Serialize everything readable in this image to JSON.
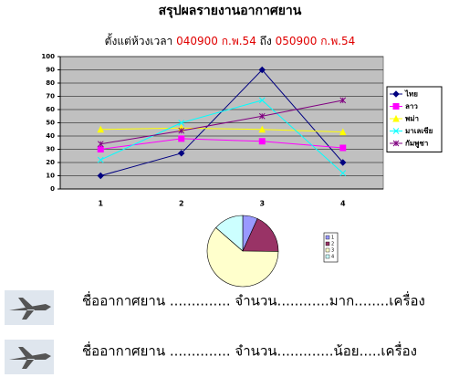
{
  "header": {
    "title": "สรุปผลรายงานอากาศยาน",
    "subtitle": [
      "ตั้งแต่ห้วงเวลา",
      "040900 ก.พ.54",
      "ถึง",
      "050900 ก.พ.54"
    ]
  },
  "chart_data": [
    {
      "type": "line",
      "categories": [
        "1",
        "2",
        "3",
        "4"
      ],
      "ylim": [
        0,
        100
      ],
      "yticks": [
        0,
        10,
        20,
        30,
        40,
        50,
        60,
        70,
        80,
        90,
        100
      ],
      "grid": true,
      "legend": "right",
      "series": [
        {
          "name": "ไทย",
          "color": "#000080",
          "marker": "diamond",
          "values": [
            10,
            27,
            90,
            20
          ]
        },
        {
          "name": "ลาว",
          "color": "#ff00ff",
          "marker": "square",
          "values": [
            30,
            38,
            36,
            31
          ]
        },
        {
          "name": "พม่า",
          "color": "#ffff00",
          "marker": "triangle",
          "values": [
            45,
            46,
            45,
            43
          ]
        },
        {
          "name": "มาเลเซีย",
          "color": "#00ffff",
          "marker": "x",
          "values": [
            22,
            50,
            67,
            12
          ]
        },
        {
          "name": "กัมพูชา",
          "color": "#800080",
          "marker": "star",
          "values": [
            34,
            44,
            55,
            67
          ]
        }
      ]
    },
    {
      "type": "pie",
      "categories": [
        "1",
        "2",
        "3",
        "4"
      ],
      "values": [
        10,
        27,
        90,
        20
      ],
      "colors": [
        "#9999ff",
        "#993366",
        "#ffffcc",
        "#ccffff"
      ],
      "legend": "right"
    }
  ],
  "rows": [
    "ชื่ออากาศยาน .............. จำนวน............มาก........เครื่อง",
    "ชื่ออากาศยาน .............. จำนวน.............น้อย.....เครื่อง"
  ]
}
